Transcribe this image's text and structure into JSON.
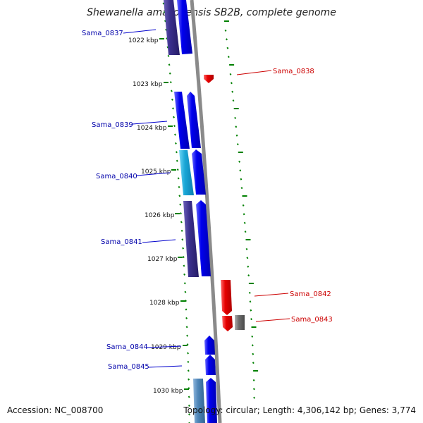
{
  "title": "Shewanella amazonensis SB2B, complete genome",
  "accession_label": "Accession: NC_008700",
  "topology_label": "Topology: circular; Length: 4,306,142 bp; Genes: 3,774",
  "colors": {
    "forward_gene": "#0000ee",
    "forward_dark": "#3a2f8c",
    "forward_cyan": "#19a6d6",
    "forward_steel": "#4f86b8",
    "reverse_gene": "#e60000",
    "other_gene": "#6e6e6e",
    "backbone": "#8a8a8a",
    "tick_mark": "#008000",
    "forward_label": "#0000aa",
    "reverse_label": "#cc0000"
  },
  "scale_ticks": [
    "1022 kbp",
    "1023 kbp",
    "1024 kbp",
    "1025 kbp",
    "1026 kbp",
    "1027 kbp",
    "1028 kbp",
    "1029 kbp",
    "1030 kbp"
  ],
  "genes": [
    {
      "label": "Sama_0837",
      "strand": "forward"
    },
    {
      "label": "Sama_0838",
      "strand": "reverse"
    },
    {
      "label": "Sama_0839",
      "strand": "forward"
    },
    {
      "label": "Sama_0840",
      "strand": "forward"
    },
    {
      "label": "Sama_0841",
      "strand": "forward"
    },
    {
      "label": "Sama_0842",
      "strand": "reverse"
    },
    {
      "label": "Sama_0843",
      "strand": "reverse"
    },
    {
      "label": "Sama_0844",
      "strand": "forward"
    },
    {
      "label": "Sama_0845",
      "strand": "forward"
    }
  ]
}
